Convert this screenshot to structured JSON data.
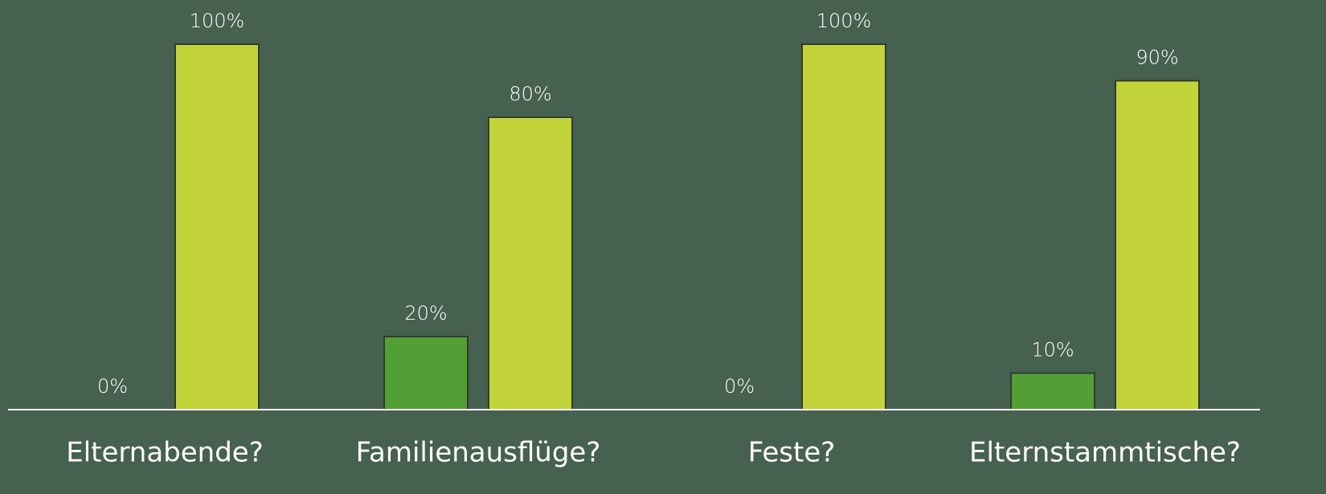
{
  "chart_data": {
    "type": "bar",
    "categories": [
      "Elternabende?",
      "Familienausflüge?",
      "Feste?",
      "Elternstammtische?"
    ],
    "series": [
      {
        "color": "#52a035",
        "values": [
          0,
          20,
          0,
          10
        ],
        "value_labels": [
          "0%",
          "20%",
          "0%",
          "10%"
        ]
      },
      {
        "color": "#c3d43a",
        "values": [
          100,
          80,
          100,
          90
        ],
        "value_labels": [
          "100%",
          "80%",
          "100%",
          "90%"
        ]
      }
    ],
    "ylim": [
      0,
      100
    ]
  }
}
